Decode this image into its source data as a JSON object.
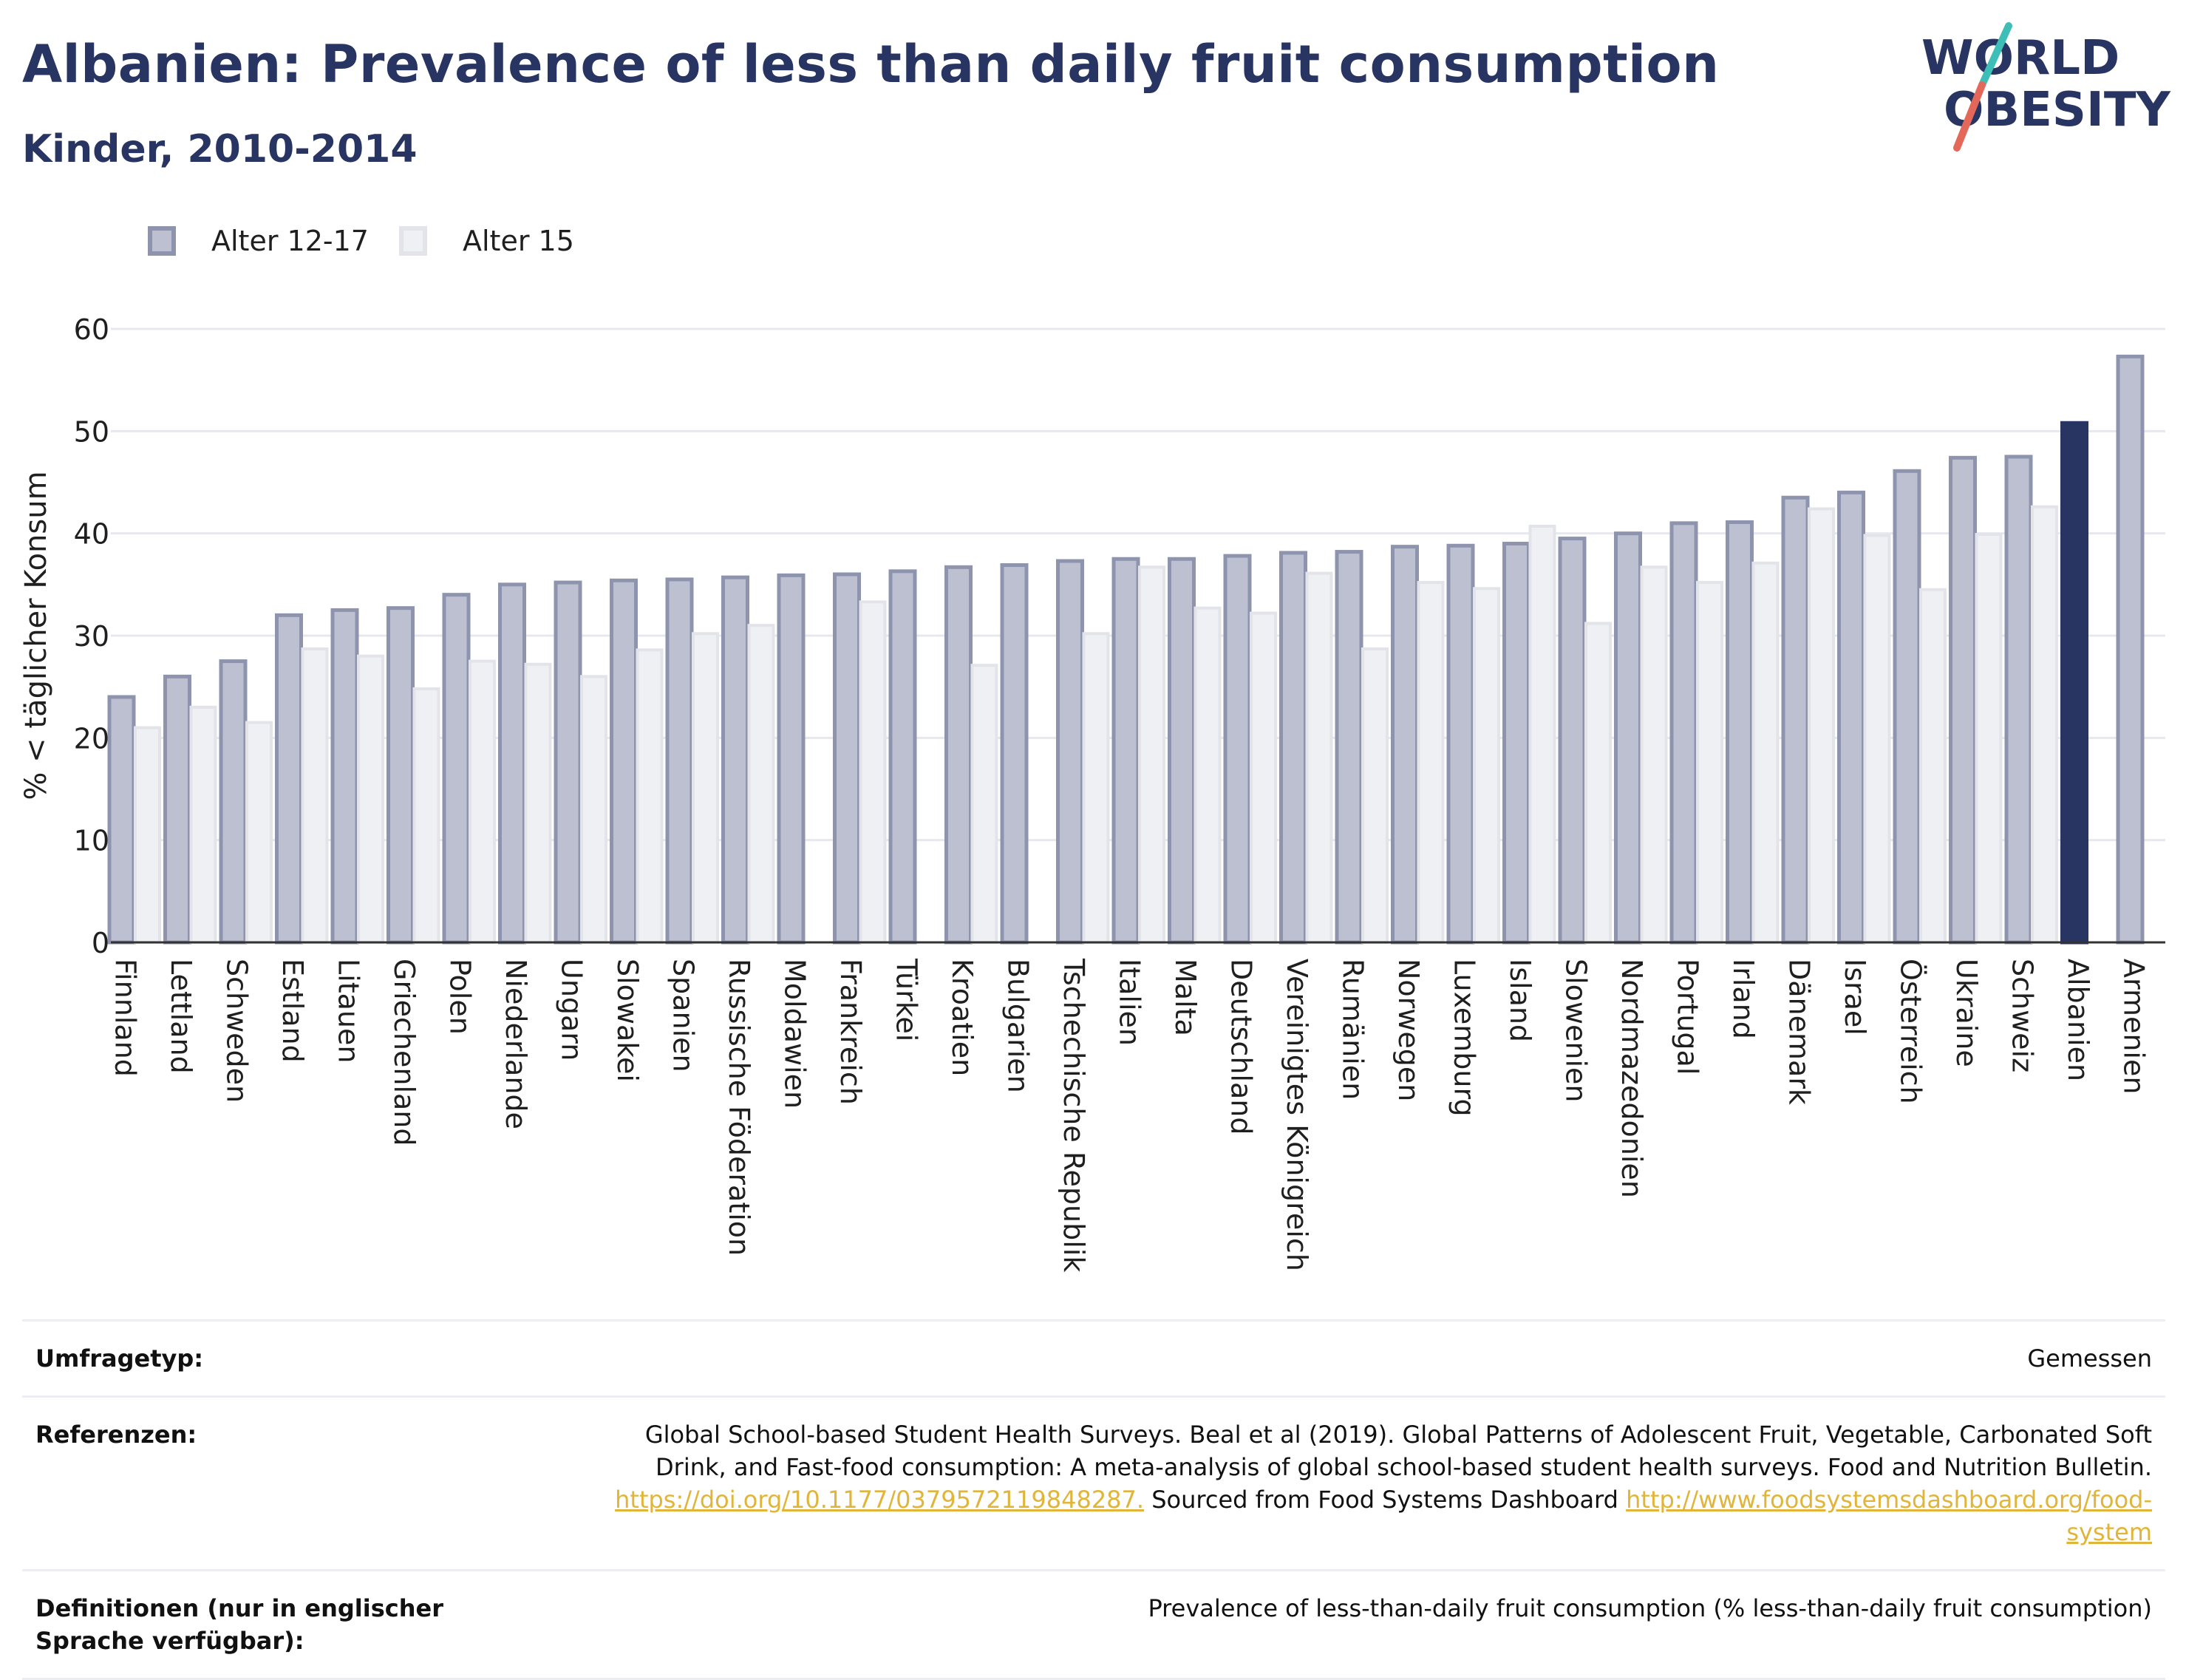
{
  "header": {
    "title": "Albanien: Prevalence of less than daily fruit consumption",
    "subtitle": "Kinder, 2010-2014"
  },
  "logo": {
    "line1": "WORLD",
    "line2": "OBESITY",
    "colors": {
      "text": "#283461",
      "slash_teal": "#3dbfb8",
      "slash_coral": "#e3685a"
    }
  },
  "colors": {
    "series_12_17_fill": "#bcc0d0",
    "series_12_17_stroke": "#8e94ad",
    "series_15_fill": "#eef0f4",
    "series_15_stroke": "#e2e4ea",
    "highlight": "#283461",
    "grid": "#e6e8ee",
    "axis": "#333333"
  },
  "chart_data": {
    "type": "bar",
    "ylabel": "% < täglicher Konsum",
    "ylim": [
      0,
      60
    ],
    "yticks": [
      0,
      10,
      20,
      30,
      40,
      50,
      60
    ],
    "grid": true,
    "legend_position": "top-left",
    "highlight_category": "Albanien",
    "categories": [
      "Finnland",
      "Lettland",
      "Schweden",
      "Estland",
      "Litauen",
      "Griechenland",
      "Polen",
      "Niederlande",
      "Ungarn",
      "Slowakei",
      "Spanien",
      "Russische Föderation",
      "Moldawien",
      "Frankreich",
      "Türkei",
      "Kroatien",
      "Bulgarien",
      "Tschechische Republik",
      "Italien",
      "Malta",
      "Deutschland",
      "Vereinigtes Königreich",
      "Rumänien",
      "Norwegen",
      "Luxemburg",
      "Island",
      "Slowenien",
      "Nordmazedonien",
      "Portugal",
      "Irland",
      "Dänemark",
      "Israel",
      "Österreich",
      "Ukraine",
      "Schweiz",
      "Albanien",
      "Armenien"
    ],
    "series": [
      {
        "name": "Alter 12-17",
        "values": [
          24,
          26,
          27.5,
          32,
          32.5,
          32.7,
          34,
          35,
          35.2,
          35.4,
          35.5,
          35.7,
          35.9,
          36,
          36.3,
          36.7,
          36.9,
          37.3,
          37.5,
          37.5,
          37.8,
          38.1,
          38.2,
          38.7,
          38.8,
          39,
          39.5,
          40,
          41,
          41.1,
          43.5,
          44,
          46.1,
          47.4,
          47.5,
          50.8,
          57.3
        ]
      },
      {
        "name": "Alter 15",
        "values": [
          21,
          23,
          21.5,
          28.7,
          28,
          24.8,
          27.5,
          27.2,
          26,
          28.6,
          30.2,
          31,
          null,
          33.3,
          null,
          27.1,
          null,
          30.2,
          36.7,
          32.7,
          32.2,
          36.1,
          28.7,
          35.2,
          34.6,
          40.7,
          31.2,
          36.7,
          35.2,
          37.1,
          42.4,
          39.8,
          34.5,
          39.9,
          42.6,
          null,
          null
        ]
      }
    ]
  },
  "meta": {
    "survey_label": "Umfragetyp:",
    "survey_value": "Gemessen",
    "refs_label": "Referenzen:",
    "refs_text1": "Global School-based Student Health Surveys. Beal et al (2019). Global Patterns of Adolescent Fruit, Vegetable, Carbonated Soft Drink, and Fast-food consumption: A meta-analysis of global school-based student health surveys. Food and Nutrition Bulletin.",
    "refs_link1": "https://doi.org/10.1177/0379572119848287.",
    "refs_text2": " Sourced from Food Systems Dashboard ",
    "refs_link2": "http://www.foodsystemsdashboard.org/food-system",
    "defs_label": "Definitionen (nur in englischer Sprache verfügbar):",
    "defs_value": "Prevalence of less-than-daily fruit consumption (% less-than-daily fruit consumption)"
  }
}
